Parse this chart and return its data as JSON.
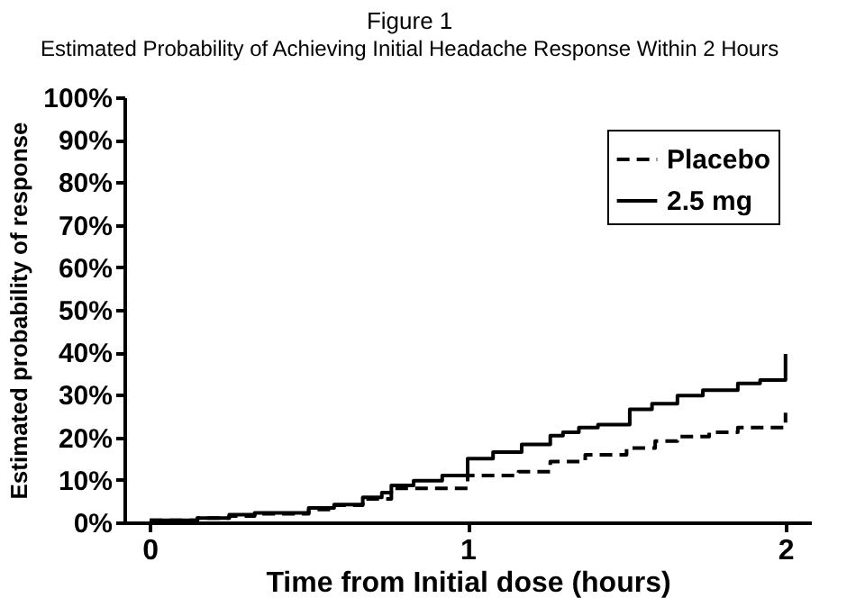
{
  "chart_data": {
    "type": "step",
    "title": "Figure 1",
    "subtitle": "Estimated Probability of Achieving Initial Headache Response Within 2 Hours",
    "xlabel": "Time from Initial dose (hours)",
    "ylabel": "Estimated probability of response",
    "xlim": [
      -0.08,
      2.08
    ],
    "xticks": [
      0,
      1,
      2
    ],
    "ylim": [
      0,
      100
    ],
    "yticks": [
      {
        "value": 0,
        "label": "0%"
      },
      {
        "value": 10,
        "label": "10%"
      },
      {
        "value": 20,
        "label": "20%"
      },
      {
        "value": 30,
        "label": "30%"
      },
      {
        "value": 40,
        "label": "40%"
      },
      {
        "value": 50,
        "label": "50%"
      },
      {
        "value": 60,
        "label": "60%"
      },
      {
        "value": 70,
        "label": "70%"
      },
      {
        "value": 80,
        "label": "80%"
      },
      {
        "value": 90,
        "label": "90%"
      },
      {
        "value": 100,
        "label": "100%"
      }
    ],
    "grid": false,
    "legend": "top right",
    "marker": "none",
    "series": [
      {
        "name": "Placebo",
        "color": "#000000",
        "line_style": "dashed",
        "x": [
          0,
          0.15,
          0.25,
          0.33,
          0.5,
          0.58,
          0.67,
          0.76,
          1.0,
          1.16,
          1.26,
          1.37,
          1.5,
          1.59,
          1.66,
          1.76,
          1.85,
          2.0
        ],
        "values": [
          0.5,
          1,
          1.5,
          2,
          3,
          4,
          5.5,
          8,
          11,
          11.9,
          14.3,
          15.9,
          17.5,
          19.1,
          20.2,
          21.2,
          22.3,
          25.8
        ]
      },
      {
        "name": "2.5 mg",
        "color": "#000000",
        "line_style": "solid",
        "x": [
          0,
          0.15,
          0.25,
          0.33,
          0.5,
          0.58,
          0.67,
          0.73,
          0.76,
          0.83,
          0.92,
          1.0,
          1.08,
          1.17,
          1.26,
          1.3,
          1.35,
          1.41,
          1.51,
          1.58,
          1.66,
          1.74,
          1.85,
          1.92,
          2.0
        ],
        "values": [
          0.5,
          1,
          1.8,
          2.2,
          3.4,
          4.2,
          5.9,
          7,
          8.7,
          9.8,
          11,
          15,
          16.5,
          18.3,
          20.4,
          21.2,
          22.3,
          23,
          26.6,
          27.9,
          29.8,
          31.1,
          32.7,
          33.5,
          39.6
        ]
      }
    ]
  }
}
